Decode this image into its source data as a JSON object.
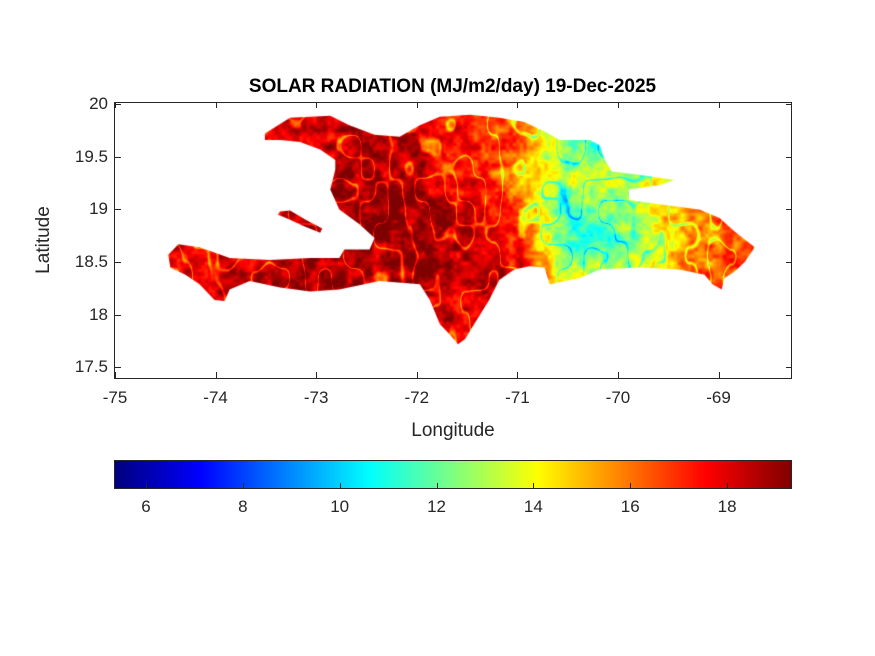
{
  "chart_data": {
    "type": "heatmap",
    "title": "SOLAR RADIATION (MJ/m2/day) 19-Dec-2025",
    "xlabel": "Longitude",
    "ylabel": "Latitude",
    "xlim": [
      -75,
      -68.27
    ],
    "ylim": [
      17.4,
      20.02
    ],
    "xticks": [
      -75,
      -74,
      -73,
      -72,
      -71,
      -70,
      -69
    ],
    "xtick_labels": [
      "-75",
      "-74",
      "-73",
      "-72",
      "-71",
      "-70",
      "-69"
    ],
    "yticks": [
      17.5,
      18,
      18.5,
      19,
      19.5,
      20
    ],
    "ytick_labels": [
      "17.5",
      "18",
      "18.5",
      "19",
      "19.5",
      "20"
    ],
    "grid": false,
    "colormap": "jet",
    "colorbar": {
      "orientation": "horizontal",
      "placement": "bottom",
      "clim": [
        5.36,
        19.34
      ],
      "ticks": [
        6,
        8,
        10,
        12,
        14,
        16,
        18
      ],
      "tick_labels": [
        "6",
        "8",
        "10",
        "12",
        "14",
        "16",
        "18"
      ]
    },
    "region": "Hispaniola",
    "grid_lon": [
      -74.5,
      -74.0,
      -73.5,
      -73.0,
      -72.5,
      -72.0,
      -71.5,
      -71.0,
      -70.5,
      -70.0,
      -69.5,
      -69.0,
      -68.6
    ],
    "grid_lat": [
      19.9,
      19.6,
      19.3,
      19.0,
      18.7,
      18.4,
      18.1,
      17.8
    ],
    "values": [
      [
        18.6,
        18.4,
        17.6,
        17.8,
        18.4,
        18.2,
        17.2,
        15.8,
        12.6,
        13.0,
        14.0,
        15.5,
        16.0
      ],
      [
        18.6,
        18.4,
        17.8,
        18.2,
        18.6,
        18.4,
        17.6,
        16.2,
        11.8,
        11.6,
        13.4,
        15.2,
        16.0
      ],
      [
        18.6,
        18.4,
        18.2,
        18.6,
        18.8,
        18.6,
        17.4,
        15.6,
        13.2,
        13.6,
        14.2,
        15.4,
        16.0
      ],
      [
        18.4,
        18.4,
        17.8,
        18.6,
        18.8,
        18.9,
        18.4,
        16.2,
        11.6,
        12.4,
        14.6,
        16.4,
        16.4
      ],
      [
        18.2,
        18.2,
        17.8,
        18.4,
        18.8,
        18.9,
        18.6,
        17.4,
        11.0,
        11.8,
        14.4,
        16.2,
        16.6
      ],
      [
        18.0,
        18.2,
        18.4,
        18.6,
        18.8,
        18.9,
        18.4,
        18.0,
        13.4,
        12.8,
        15.0,
        16.6,
        16.8
      ],
      [
        18.2,
        18.4,
        18.6,
        18.7,
        18.8,
        18.8,
        17.6,
        18.4,
        16.0,
        15.6,
        16.4,
        17.6,
        17.2
      ],
      [
        18.6,
        18.6,
        18.6,
        18.6,
        18.7,
        18.7,
        18.0,
        18.4,
        17.0,
        17.0,
        17.0,
        18.0,
        17.6
      ]
    ]
  },
  "geo": {
    "mainland": [
      [
        -73.51,
        19.72
      ],
      [
        -73.26,
        19.87
      ],
      [
        -72.86,
        19.89
      ],
      [
        -72.67,
        19.8
      ],
      [
        -72.42,
        19.71
      ],
      [
        -72.17,
        19.69
      ],
      [
        -71.97,
        19.8
      ],
      [
        -71.77,
        19.88
      ],
      [
        -71.47,
        19.9
      ],
      [
        -71.18,
        19.87
      ],
      [
        -70.93,
        19.83
      ],
      [
        -70.73,
        19.74
      ],
      [
        -70.58,
        19.66
      ],
      [
        -70.28,
        19.66
      ],
      [
        -70.18,
        19.61
      ],
      [
        -70.13,
        19.47
      ],
      [
        -70.06,
        19.36
      ],
      [
        -69.79,
        19.33
      ],
      [
        -69.44,
        19.28
      ],
      [
        -69.59,
        19.23
      ],
      [
        -69.89,
        19.19
      ],
      [
        -69.89,
        19.09
      ],
      [
        -69.59,
        19.05
      ],
      [
        -69.19,
        19.0
      ],
      [
        -68.99,
        18.92
      ],
      [
        -68.84,
        18.79
      ],
      [
        -68.64,
        18.64
      ],
      [
        -68.74,
        18.5
      ],
      [
        -68.84,
        18.41
      ],
      [
        -68.94,
        18.35
      ],
      [
        -68.97,
        18.24
      ],
      [
        -69.06,
        18.29
      ],
      [
        -69.14,
        18.38
      ],
      [
        -69.39,
        18.43
      ],
      [
        -69.79,
        18.45
      ],
      [
        -70.18,
        18.43
      ],
      [
        -70.38,
        18.35
      ],
      [
        -70.68,
        18.29
      ],
      [
        -70.73,
        18.45
      ],
      [
        -70.88,
        18.46
      ],
      [
        -71.03,
        18.43
      ],
      [
        -71.18,
        18.33
      ],
      [
        -71.28,
        18.14
      ],
      [
        -71.43,
        17.91
      ],
      [
        -71.52,
        17.77
      ],
      [
        -71.59,
        17.72
      ],
      [
        -71.67,
        17.81
      ],
      [
        -71.77,
        17.91
      ],
      [
        -71.87,
        18.14
      ],
      [
        -71.97,
        18.29
      ],
      [
        -72.37,
        18.32
      ],
      [
        -72.77,
        18.24
      ],
      [
        -73.06,
        18.22
      ],
      [
        -73.36,
        18.26
      ],
      [
        -73.66,
        18.32
      ],
      [
        -73.86,
        18.24
      ],
      [
        -73.91,
        18.13
      ],
      [
        -74.01,
        18.14
      ],
      [
        -74.16,
        18.29
      ],
      [
        -74.3,
        18.38
      ],
      [
        -74.45,
        18.45
      ],
      [
        -74.47,
        18.57
      ],
      [
        -74.37,
        18.67
      ],
      [
        -74.16,
        18.64
      ],
      [
        -73.86,
        18.54
      ],
      [
        -73.46,
        18.52
      ],
      [
        -73.06,
        18.54
      ],
      [
        -72.77,
        18.54
      ],
      [
        -72.72,
        18.62
      ],
      [
        -72.47,
        18.62
      ],
      [
        -72.42,
        18.73
      ],
      [
        -72.57,
        18.86
      ],
      [
        -72.77,
        19.0
      ],
      [
        -72.86,
        19.19
      ],
      [
        -72.81,
        19.38
      ],
      [
        -72.81,
        19.47
      ],
      [
        -72.96,
        19.57
      ],
      [
        -73.16,
        19.64
      ],
      [
        -73.36,
        19.66
      ],
      [
        -73.51,
        19.66
      ]
    ],
    "gonave": [
      [
        -73.36,
        18.98
      ],
      [
        -73.26,
        18.99
      ],
      [
        -73.1,
        18.9
      ],
      [
        -72.94,
        18.82
      ],
      [
        -72.96,
        18.78
      ],
      [
        -73.12,
        18.84
      ],
      [
        -73.3,
        18.92
      ],
      [
        -73.38,
        18.95
      ]
    ]
  }
}
